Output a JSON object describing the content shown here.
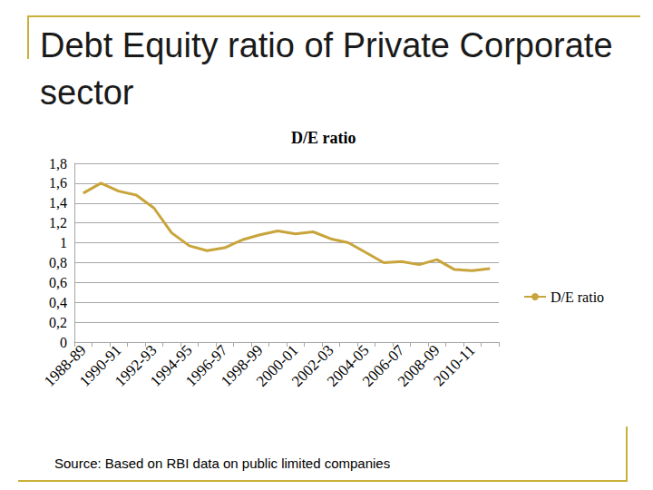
{
  "slide": {
    "title": "Debt Equity ratio of Private Corporate sector",
    "source": "Source: Based on RBI data on public limited companies"
  },
  "chart_data": {
    "type": "line",
    "title": "D/E ratio",
    "categories": [
      "1988-89",
      null,
      "1990-91",
      null,
      "1992-93",
      null,
      "1994-95",
      null,
      "1996-97",
      null,
      "1998-99",
      null,
      "2000-01",
      null,
      "2002-03",
      null,
      "2004-05",
      null,
      "2006-07",
      null,
      "2008-09",
      null,
      "2010-11",
      null
    ],
    "series": [
      {
        "name": "D/E ratio",
        "color": "#c8a43b",
        "values": [
          1.5,
          1.6,
          1.52,
          1.48,
          1.35,
          1.1,
          0.97,
          0.92,
          0.95,
          1.03,
          1.08,
          1.12,
          1.09,
          1.11,
          1.04,
          1.0,
          0.9,
          0.8,
          0.81,
          0.78,
          0.83,
          0.73,
          0.72,
          0.74
        ]
      }
    ],
    "ylim": [
      0,
      1.8
    ],
    "yticks": [
      0,
      {
        "value": 0.2,
        "label": "0,2"
      },
      {
        "value": 0.4,
        "label": "0,4"
      },
      {
        "value": 0.6,
        "label": "0,6"
      },
      {
        "value": 0.8,
        "label": "0,8"
      },
      1,
      {
        "value": 1.2,
        "label": "1,2"
      },
      {
        "value": 1.4,
        "label": "1,4"
      },
      {
        "value": 1.6,
        "label": "1,6"
      },
      {
        "value": 1.8,
        "label": "1,8"
      }
    ],
    "grid": true,
    "legend": "right"
  }
}
